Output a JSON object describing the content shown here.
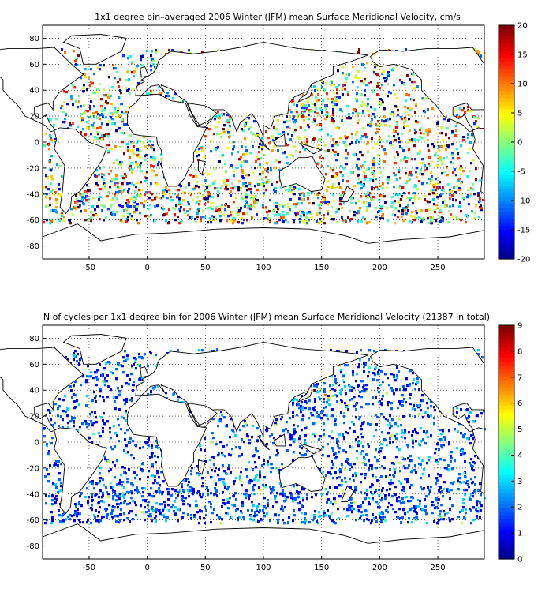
{
  "panels": [
    {
      "title": "1x1 degree bin–averaged 2006 Winter (JFM) mean Surface Meridional Velocity, cm/s",
      "colorbar": {
        "min": -20,
        "max": 20,
        "ticks": [
          20,
          15,
          10,
          5,
          0,
          -5,
          -10,
          -15,
          -20
        ],
        "colormap": "jet"
      },
      "x_ticks": [
        -50,
        0,
        50,
        100,
        150,
        200,
        250
      ],
      "y_ticks": [
        80,
        60,
        40,
        20,
        0,
        -20,
        -40,
        -60,
        -80
      ],
      "xlim": [
        -90,
        290
      ],
      "ylim": [
        -90,
        90
      ],
      "grid": true
    },
    {
      "title": "N of cycles per 1x1 degree bin for 2006 Winter (JFM) mean Surface Meridional Velocity (21387 in total)",
      "colorbar": {
        "min": 0,
        "max": 9,
        "ticks": [
          9,
          8,
          7,
          6,
          5,
          4,
          3,
          2,
          1,
          0
        ],
        "colormap": "jet"
      },
      "x_ticks": [
        -50,
        0,
        50,
        100,
        150,
        200,
        250
      ],
      "y_ticks": [
        80,
        60,
        40,
        20,
        0,
        -20,
        -40,
        -60,
        -80
      ],
      "xlim": [
        -90,
        290
      ],
      "ylim": [
        -90,
        90
      ],
      "grid": true
    }
  ]
}
